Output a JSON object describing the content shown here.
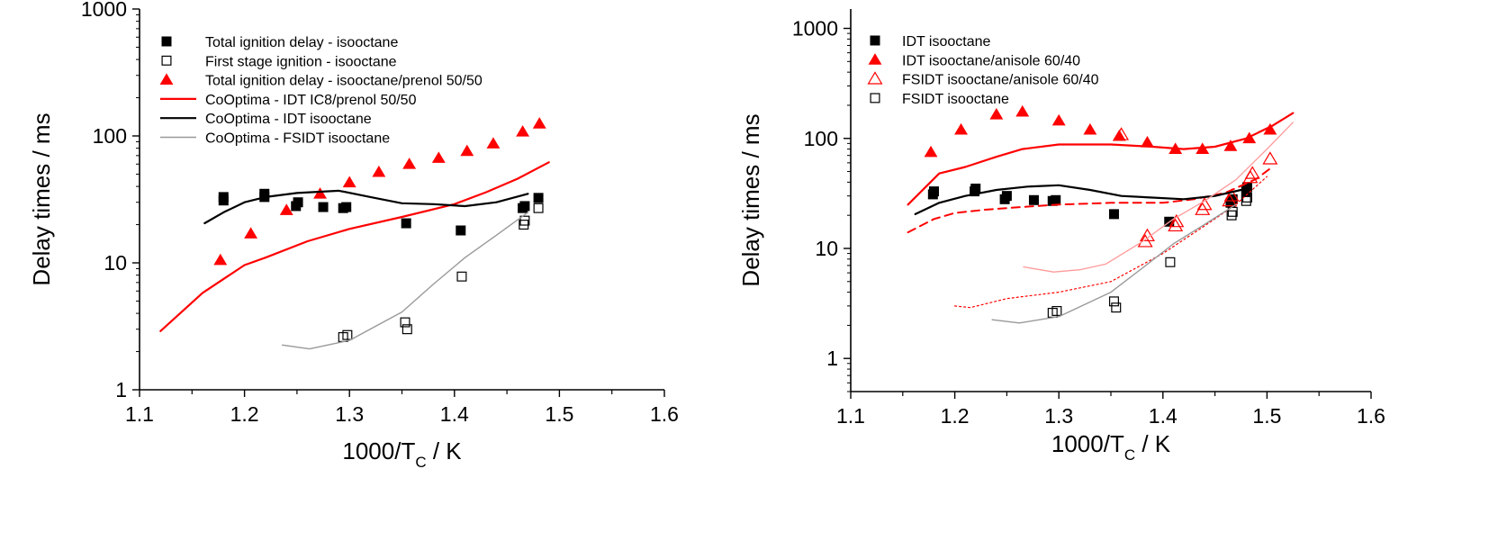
{
  "chart_data": [
    {
      "type": "scatter",
      "xlabel": "1000/T",
      "xlabel_sub": "C",
      "xlabel_unit": " / K",
      "ylabel": "Delay times / ms",
      "xlim": [
        1.1,
        1.6
      ],
      "ylim": [
        1,
        1000
      ],
      "yscale": "log",
      "x_ticks": [
        "1.1",
        "1.2",
        "1.3",
        "1.4",
        "1.5",
        "1.6"
      ],
      "y_ticks": [
        "1",
        "10",
        "100",
        "1000"
      ],
      "legend_position": "top-left",
      "series": [
        {
          "name": "Total ignition delay - isooctane",
          "kind": "points",
          "marker": "filled-square",
          "color": "#000000",
          "x": [
            1.18,
            1.18,
            1.219,
            1.219,
            1.249,
            1.251,
            1.275,
            1.294,
            1.297,
            1.354,
            1.406,
            1.465,
            1.467,
            1.48
          ],
          "y": [
            31,
            33,
            33,
            35,
            28,
            30,
            27.5,
            27,
            27.5,
            20.5,
            18,
            27,
            28,
            32.5
          ]
        },
        {
          "name": "First stage ignition - isooctane",
          "kind": "points",
          "marker": "open-square",
          "color": "#000000",
          "x": [
            1.294,
            1.298,
            1.353,
            1.355,
            1.407,
            1.466,
            1.467,
            1.48
          ],
          "y": [
            2.6,
            2.7,
            3.4,
            3.0,
            7.8,
            20,
            21.5,
            27
          ]
        },
        {
          "name": "Total ignition delay - isooctane/prenol 50/50",
          "kind": "points",
          "marker": "filled-triangle",
          "color": "#ff0000",
          "x": [
            1.177,
            1.206,
            1.24,
            1.272,
            1.3,
            1.328,
            1.357,
            1.385,
            1.412,
            1.437,
            1.465,
            1.481
          ],
          "y": [
            10.5,
            17,
            26,
            35,
            43,
            52,
            60,
            67,
            76,
            87,
            108,
            125
          ]
        },
        {
          "name": "CoOptima - IDT IC8/prenol 50/50",
          "kind": "line",
          "color": "#ff0000",
          "width": 2.2,
          "x": [
            1.12,
            1.16,
            1.2,
            1.22,
            1.26,
            1.3,
            1.35,
            1.4,
            1.43,
            1.46,
            1.49
          ],
          "y": [
            2.9,
            5.8,
            9.6,
            11.0,
            14.8,
            18.5,
            23,
            29,
            36,
            46,
            62
          ]
        },
        {
          "name": "CoOptima - IDT isooctane",
          "kind": "line",
          "color": "#000000",
          "width": 2.2,
          "x": [
            1.162,
            1.18,
            1.2,
            1.22,
            1.25,
            1.29,
            1.32,
            1.35,
            1.38,
            1.41,
            1.44,
            1.47
          ],
          "y": [
            20.5,
            25,
            30,
            33,
            35.5,
            37,
            33,
            29.5,
            29,
            28,
            30,
            35
          ]
        },
        {
          "name": "CoOptima - FSIDT isooctane",
          "kind": "line",
          "color": "#999999",
          "width": 1.4,
          "x": [
            1.236,
            1.262,
            1.3,
            1.35,
            1.38,
            1.41,
            1.44,
            1.47
          ],
          "y": [
            2.25,
            2.1,
            2.45,
            4.1,
            6.8,
            11,
            16.5,
            25
          ]
        }
      ]
    },
    {
      "type": "scatter",
      "xlabel": "1000/T",
      "xlabel_sub": "C",
      "xlabel_unit": " / K",
      "ylabel": "Delay times / ms",
      "xlim": [
        1.1,
        1.6
      ],
      "ylim": [
        0.5,
        1500
      ],
      "yscale": "log",
      "x_ticks": [
        "1.1",
        "1.2",
        "1.3",
        "1.4",
        "1.5",
        "1.6"
      ],
      "y_ticks": [
        "1",
        "10",
        "100",
        "1000"
      ],
      "legend_position": "top-left",
      "series": [
        {
          "name": "IDT isooctane",
          "kind": "points",
          "marker": "filled-square",
          "color": "#000000",
          "x": [
            1.179,
            1.18,
            1.219,
            1.22,
            1.248,
            1.25,
            1.276,
            1.294,
            1.297,
            1.353,
            1.406,
            1.465,
            1.467,
            1.48,
            1.481
          ],
          "y": [
            31,
            33,
            33,
            35,
            28,
            30,
            27.5,
            27,
            27.5,
            20.5,
            17.5,
            26,
            28,
            33,
            36
          ]
        },
        {
          "name": "IDT isooctane/anisole 60/40",
          "kind": "points",
          "marker": "filled-triangle",
          "color": "#ff0000",
          "x": [
            1.177,
            1.206,
            1.24,
            1.265,
            1.3,
            1.33,
            1.358,
            1.385,
            1.412,
            1.438,
            1.465,
            1.483,
            1.503
          ],
          "y": [
            75,
            120,
            165,
            175,
            145,
            120,
            105,
            92,
            80,
            80,
            85,
            100,
            120
          ]
        },
        {
          "name": "FSIDT isooctane/anisole 60/40",
          "kind": "points",
          "marker": "open-triangle",
          "color": "#ff0000",
          "x": [
            1.36,
            1.383,
            1.385,
            1.412,
            1.413,
            1.438,
            1.44,
            1.464,
            1.466,
            1.484,
            1.486,
            1.503
          ],
          "y": [
            108,
            11.5,
            13,
            16,
            17.5,
            22.5,
            25,
            27,
            30,
            44,
            48,
            65
          ]
        },
        {
          "name": "FSIDT isooctane",
          "kind": "points",
          "marker": "open-square",
          "color": "#000000",
          "x": [
            1.294,
            1.298,
            1.353,
            1.355,
            1.407,
            1.466,
            1.467,
            1.48,
            1.481
          ],
          "y": [
            2.6,
            2.7,
            3.3,
            2.9,
            7.5,
            20,
            21.5,
            27,
            29
          ]
        },
        {
          "kind": "line",
          "color": "#ff0000",
          "width": 2.2,
          "x": [
            1.155,
            1.185,
            1.21,
            1.24,
            1.265,
            1.3,
            1.35,
            1.39,
            1.42,
            1.45,
            1.48,
            1.505,
            1.525
          ],
          "y": [
            25,
            48,
            55,
            68,
            80,
            88,
            88,
            84,
            80,
            84,
            100,
            130,
            170
          ]
        },
        {
          "kind": "line",
          "color": "#ff0000",
          "width": 2,
          "dash": "9,6",
          "x": [
            1.155,
            1.18,
            1.2,
            1.23,
            1.27,
            1.3,
            1.35,
            1.4,
            1.43,
            1.46,
            1.49,
            1.505
          ],
          "y": [
            14,
            18.5,
            21,
            22.5,
            24,
            25,
            26,
            26,
            28,
            32,
            43,
            55
          ]
        },
        {
          "kind": "line",
          "color": "#000000",
          "width": 2.2,
          "x": [
            1.162,
            1.185,
            1.21,
            1.24,
            1.27,
            1.3,
            1.33,
            1.36,
            1.39,
            1.42,
            1.45,
            1.475
          ],
          "y": [
            20.5,
            26,
            30,
            34,
            36.5,
            37.5,
            34,
            30,
            29,
            28,
            30,
            34
          ]
        },
        {
          "kind": "line",
          "color": "#ff9a9a",
          "width": 1.3,
          "x": [
            1.266,
            1.295,
            1.32,
            1.345,
            1.38,
            1.41,
            1.44,
            1.47,
            1.5,
            1.525
          ],
          "y": [
            6.8,
            6.1,
            6.4,
            7.2,
            11.5,
            18.5,
            27,
            42,
            80,
            140
          ]
        },
        {
          "kind": "line",
          "color": "#ff0000",
          "width": 1.2,
          "dash": "2,3",
          "x": [
            1.2,
            1.215,
            1.25,
            1.3,
            1.35,
            1.4,
            1.44,
            1.47,
            1.5
          ],
          "y": [
            3.0,
            2.9,
            3.5,
            4.0,
            5.0,
            9.0,
            16,
            25,
            45
          ]
        },
        {
          "kind": "line",
          "color": "#999999",
          "width": 1.4,
          "x": [
            1.236,
            1.262,
            1.3,
            1.35,
            1.38,
            1.41,
            1.44,
            1.47
          ],
          "y": [
            2.25,
            2.1,
            2.4,
            4.0,
            6.6,
            11,
            16.5,
            25
          ]
        }
      ]
    }
  ]
}
